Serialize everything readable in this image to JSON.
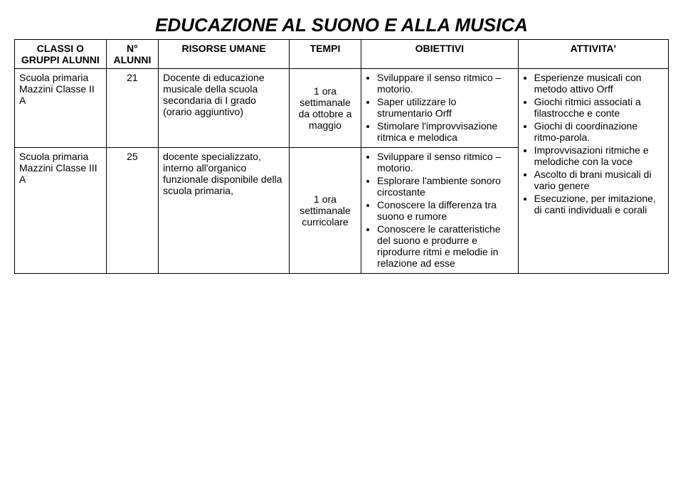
{
  "title": "EDUCAZIONE AL SUONO E ALLA MUSICA",
  "headers": {
    "classi": "CLASSI O GRUPPI ALUNNI",
    "nalunni": "N° ALUNNI",
    "risorse": "RISORSE UMANE",
    "tempi": "TEMPI",
    "obiettivi": "OBIETTIVI",
    "attivita": "ATTIVITA'"
  },
  "rows": [
    {
      "classi": "Scuola primaria Mazzini Classe II A",
      "nalunni": "21",
      "risorse": "Docente di educazione musicale della scuola secondaria di I grado (orario aggiuntivo)",
      "tempi": "1 ora settimanale da ottobre a maggio",
      "obiettivi": [
        "Sviluppare il senso ritmico – motorio.",
        "Saper utilizzare lo strumentario Orff",
        "Stimolare l'improvvisazione ritmica e melodica"
      ]
    },
    {
      "classi": "Scuola primaria Mazzini Classe III A",
      "nalunni": "25",
      "risorse": "docente specializzato, interno all'organico funzionale disponibile della scuola primaria,",
      "tempi": "1 ora settimanale curricolare",
      "obiettivi": [
        "Sviluppare il senso ritmico – motorio.",
        "Esplorare l'ambiente sonoro circostante",
        "Conoscere la differenza tra suono e rumore",
        "Conoscere le caratteristiche del suono e produrre e riprodurre ritmi e melodie in relazione ad esse"
      ]
    }
  ],
  "attivita": [
    "Esperienze musicali con metodo attivo Orff",
    "Giochi ritmici associati a filastrocche e conte",
    "Giochi di coordinazione ritmo-parola.",
    "Improvvisazioni ritmiche e melodiche con la voce",
    "Ascolto di brani musicali di vario genere",
    "Esecuzione, per imitazione, di canti individuali e corali"
  ]
}
